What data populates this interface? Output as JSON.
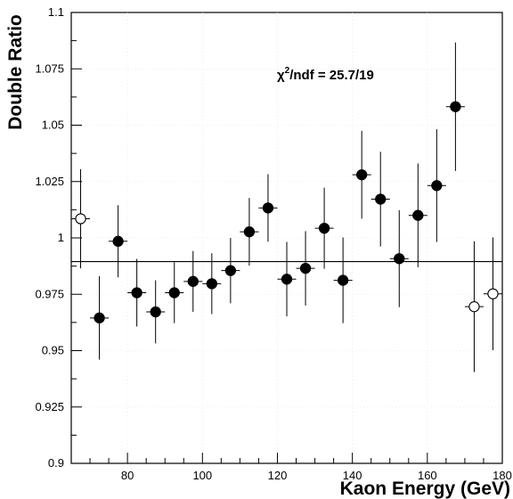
{
  "chart_data": {
    "type": "scatter",
    "xlabel": "Kaon Energy (GeV)",
    "ylabel": "Double Ratio",
    "xlim": [
      65,
      180
    ],
    "ylim": [
      0.9,
      1.1
    ],
    "x_ticks": [
      80,
      100,
      120,
      140,
      160,
      180
    ],
    "y_ticks": [
      0.9,
      0.925,
      0.95,
      0.975,
      1,
      1.025,
      1.05,
      1.075,
      1.1
    ],
    "x_tick_labels": [
      "80",
      "100",
      "120",
      "140",
      "160",
      "180"
    ],
    "y_tick_labels": [
      "0.9",
      "0.925",
      "0.95",
      "0.975",
      "1",
      "1.025",
      "1.05",
      "1.075",
      "1.1"
    ],
    "annotation_prefix": "χ",
    "annotation_sup": "2",
    "annotation_suffix": "/ndf = 25.7/19",
    "fit_value": 0.9895,
    "points": [
      {
        "x": 67.5,
        "y": 1.0085,
        "err": 0.022,
        "filled": false
      },
      {
        "x": 72.5,
        "y": 0.9645,
        "err": 0.0185,
        "filled": true
      },
      {
        "x": 77.5,
        "y": 0.9985,
        "err": 0.016,
        "filled": true
      },
      {
        "x": 82.5,
        "y": 0.9757,
        "err": 0.015,
        "filled": true
      },
      {
        "x": 87.5,
        "y": 0.9672,
        "err": 0.014,
        "filled": true
      },
      {
        "x": 92.5,
        "y": 0.9757,
        "err": 0.0135,
        "filled": true
      },
      {
        "x": 97.5,
        "y": 0.9807,
        "err": 0.0135,
        "filled": true
      },
      {
        "x": 102.5,
        "y": 0.9797,
        "err": 0.0135,
        "filled": true
      },
      {
        "x": 107.5,
        "y": 0.9855,
        "err": 0.0145,
        "filled": true
      },
      {
        "x": 112.5,
        "y": 1.0027,
        "err": 0.015,
        "filled": true
      },
      {
        "x": 117.5,
        "y": 1.0133,
        "err": 0.015,
        "filled": true
      },
      {
        "x": 122.5,
        "y": 0.9817,
        "err": 0.0165,
        "filled": true
      },
      {
        "x": 127.5,
        "y": 0.9865,
        "err": 0.0165,
        "filled": true
      },
      {
        "x": 132.5,
        "y": 1.0043,
        "err": 0.018,
        "filled": true
      },
      {
        "x": 137.5,
        "y": 0.9812,
        "err": 0.019,
        "filled": true
      },
      {
        "x": 142.5,
        "y": 1.028,
        "err": 0.0195,
        "filled": true
      },
      {
        "x": 147.5,
        "y": 1.0172,
        "err": 0.021,
        "filled": true
      },
      {
        "x": 152.5,
        "y": 0.9908,
        "err": 0.0215,
        "filled": true
      },
      {
        "x": 157.5,
        "y": 1.01,
        "err": 0.023,
        "filled": true
      },
      {
        "x": 162.5,
        "y": 1.0232,
        "err": 0.025,
        "filled": true
      },
      {
        "x": 167.5,
        "y": 1.0582,
        "err": 0.0285,
        "filled": true
      },
      {
        "x": 172.5,
        "y": 0.9695,
        "err": 0.029,
        "filled": false
      },
      {
        "x": 177.5,
        "y": 0.9752,
        "err": 0.025,
        "filled": false
      }
    ]
  }
}
